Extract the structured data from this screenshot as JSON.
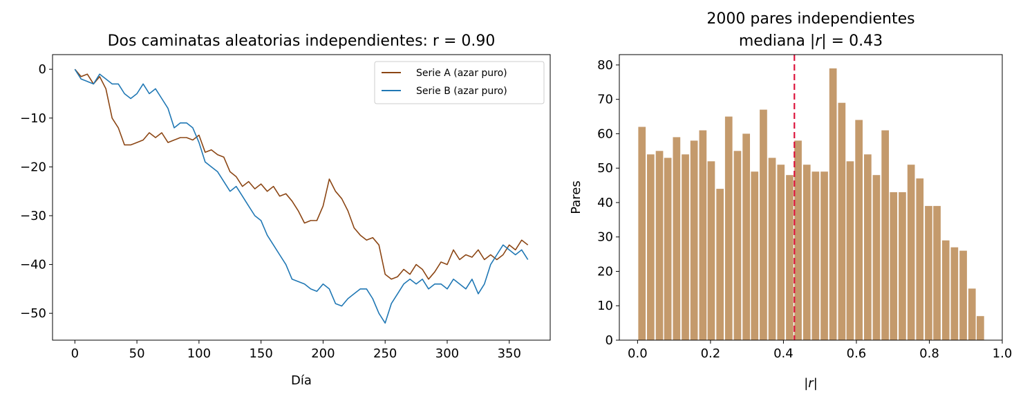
{
  "chart_data": [
    {
      "type": "line",
      "title": "Dos caminatas aleatorias independientes: r = 0.90",
      "xlabel": "Día",
      "ylabel": "",
      "xlim": [
        -18,
        383
      ],
      "ylim": [
        -55.5,
        3
      ],
      "x_ticks": [
        0,
        50,
        100,
        150,
        200,
        250,
        300,
        350
      ],
      "y_ticks": [
        0,
        -10,
        -20,
        -30,
        -40,
        -50
      ],
      "grid": false,
      "legend_position": "top-right",
      "series": [
        {
          "name": "Serie A (azar puro)",
          "color": "#8B4513",
          "x": [
            0,
            5,
            10,
            15,
            20,
            25,
            30,
            35,
            40,
            45,
            50,
            55,
            60,
            65,
            70,
            75,
            80,
            85,
            90,
            95,
            100,
            105,
            110,
            115,
            120,
            125,
            130,
            135,
            140,
            145,
            150,
            155,
            160,
            165,
            170,
            175,
            180,
            185,
            190,
            195,
            200,
            205,
            210,
            215,
            220,
            225,
            230,
            235,
            240,
            245,
            250,
            255,
            260,
            265,
            270,
            275,
            280,
            285,
            290,
            295,
            300,
            305,
            310,
            315,
            320,
            325,
            330,
            335,
            340,
            345,
            350,
            355,
            360,
            365
          ],
          "values": [
            0,
            -1.5,
            -1,
            -3,
            -1.5,
            -4,
            -10,
            -12,
            -15.5,
            -15.5,
            -15,
            -14.5,
            -13,
            -14,
            -13,
            -15,
            -14.5,
            -14,
            -14,
            -14.5,
            -13.5,
            -17,
            -16.5,
            -17.5,
            -18,
            -21,
            -22,
            -24,
            -23,
            -24.5,
            -23.5,
            -25,
            -24,
            -26,
            -25.5,
            -27,
            -29,
            -31.5,
            -31,
            -31,
            -28,
            -22.5,
            -25,
            -26.5,
            -29,
            -32.5,
            -34,
            -35,
            -34.5,
            -36,
            -42,
            -43,
            -42.5,
            -41,
            -42,
            -40,
            -41,
            -43,
            -41.5,
            -39.5,
            -40,
            -37,
            -39,
            -38,
            -38.5,
            -37,
            -39,
            -38,
            -39,
            -38,
            -36,
            -37,
            -35,
            -36
          ]
        },
        {
          "name": "Serie B (azar puro)",
          "color": "#1f77b4",
          "x": [
            0,
            5,
            10,
            15,
            20,
            25,
            30,
            35,
            40,
            45,
            50,
            55,
            60,
            65,
            70,
            75,
            80,
            85,
            90,
            95,
            100,
            105,
            110,
            115,
            120,
            125,
            130,
            135,
            140,
            145,
            150,
            155,
            160,
            165,
            170,
            175,
            180,
            185,
            190,
            195,
            200,
            205,
            210,
            215,
            220,
            225,
            230,
            235,
            240,
            245,
            250,
            255,
            260,
            265,
            270,
            275,
            280,
            285,
            290,
            295,
            300,
            305,
            310,
            315,
            320,
            325,
            330,
            335,
            340,
            345,
            350,
            355,
            360,
            365
          ],
          "values": [
            0,
            -2,
            -2.5,
            -3,
            -1,
            -2,
            -3,
            -3,
            -5,
            -6,
            -5,
            -3,
            -5,
            -4,
            -6,
            -8,
            -12,
            -11,
            -11,
            -12,
            -15,
            -19,
            -20,
            -21,
            -23,
            -25,
            -24,
            -26,
            -28,
            -30,
            -31,
            -34,
            -36,
            -38,
            -40,
            -43,
            -43.5,
            -44,
            -45,
            -45.5,
            -44,
            -45,
            -48,
            -48.5,
            -47,
            -46,
            -45,
            -45,
            -47,
            -50,
            -52,
            -48,
            -46,
            -44,
            -43,
            -44,
            -43,
            -45,
            -44,
            -44,
            -45,
            -43,
            -44,
            -45,
            -43,
            -46,
            -44,
            -40,
            -38,
            -36,
            -37,
            -38,
            -37,
            -39
          ]
        }
      ]
    },
    {
      "type": "bar",
      "title": "2000 pares independientes",
      "subtitle_prefix": "mediana |",
      "subtitle_var": "r",
      "subtitle_suffix": "| = 0.43",
      "xlabel_prefix": "|",
      "xlabel_var": "r",
      "xlabel_suffix": "|",
      "ylabel": "Pares",
      "xlim": [
        -0.05,
        1.0
      ],
      "ylim": [
        0,
        83
      ],
      "x_ticks": [
        0.0,
        0.2,
        0.4,
        0.6,
        0.8,
        1.0
      ],
      "x_tick_labels": [
        "0.0",
        "0.2",
        "0.4",
        "0.6",
        "0.8",
        "1.0"
      ],
      "y_ticks": [
        0,
        10,
        20,
        30,
        40,
        50,
        60,
        70,
        80
      ],
      "bar_color": "#C49A6C",
      "median": 0.43,
      "median_color": "#DC143C",
      "bin_width": 0.0238,
      "bin_centers": [
        0.012,
        0.036,
        0.06,
        0.083,
        0.107,
        0.131,
        0.155,
        0.179,
        0.202,
        0.226,
        0.25,
        0.274,
        0.298,
        0.321,
        0.345,
        0.369,
        0.393,
        0.417,
        0.44,
        0.464,
        0.488,
        0.512,
        0.536,
        0.56,
        0.583,
        0.607,
        0.631,
        0.655,
        0.679,
        0.702,
        0.726,
        0.75,
        0.774,
        0.798,
        0.821,
        0.845,
        0.869,
        0.893,
        0.917,
        0.94
      ],
      "values": [
        62,
        54,
        55,
        53,
        59,
        54,
        58,
        61,
        52,
        44,
        65,
        55,
        60,
        49,
        67,
        53,
        51,
        48,
        58,
        51,
        49,
        49,
        79,
        69,
        52,
        64,
        54,
        48,
        61,
        43,
        43,
        51,
        47,
        39,
        39,
        29,
        27,
        26,
        15,
        7
      ]
    }
  ]
}
